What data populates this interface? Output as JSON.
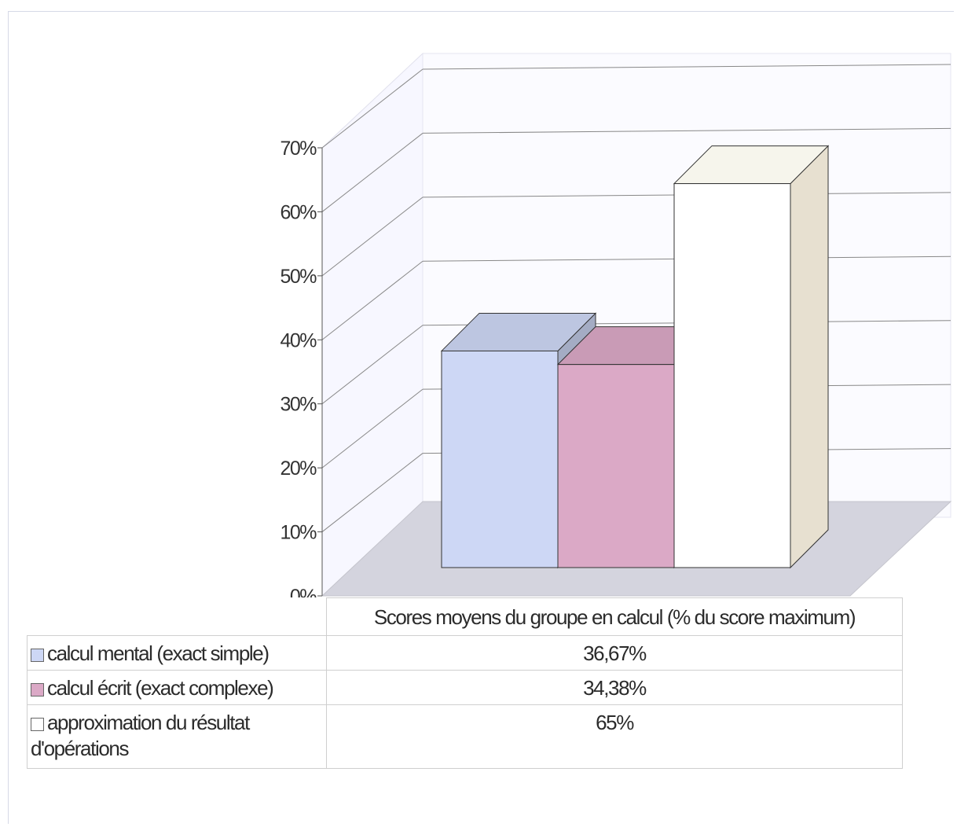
{
  "chart_data": {
    "type": "bar",
    "category": "Scores moyens du groupe en calcul (% du score maximum)",
    "series": [
      {
        "name": "calcul mental (exact simple)",
        "value": 36.67,
        "display": "36,67%",
        "color": "#cdd7f5"
      },
      {
        "name": "calcul écrit (exact complexe)",
        "value": 34.38,
        "display": "34,38%",
        "color": "#dba9c6"
      },
      {
        "name": "approximation du résultat d'opérations",
        "value": 65,
        "display": "65%",
        "color": "#ffffff"
      }
    ],
    "yticks": [
      "0%",
      "10%",
      "20%",
      "30%",
      "40%",
      "50%",
      "60%",
      "70%"
    ],
    "ylim": [
      0,
      70
    ],
    "grid": true,
    "legend": "table"
  },
  "table": {
    "header": "Scores moyens du groupe en calcul (% du score maximum)",
    "rows": [
      {
        "label": "calcul mental (exact simple)",
        "value": "36,67%"
      },
      {
        "label": "calcul écrit (exact complexe)",
        "value": "34,38%"
      },
      {
        "label": "approximation du résultat d'opérations",
        "value": "65%"
      }
    ]
  }
}
